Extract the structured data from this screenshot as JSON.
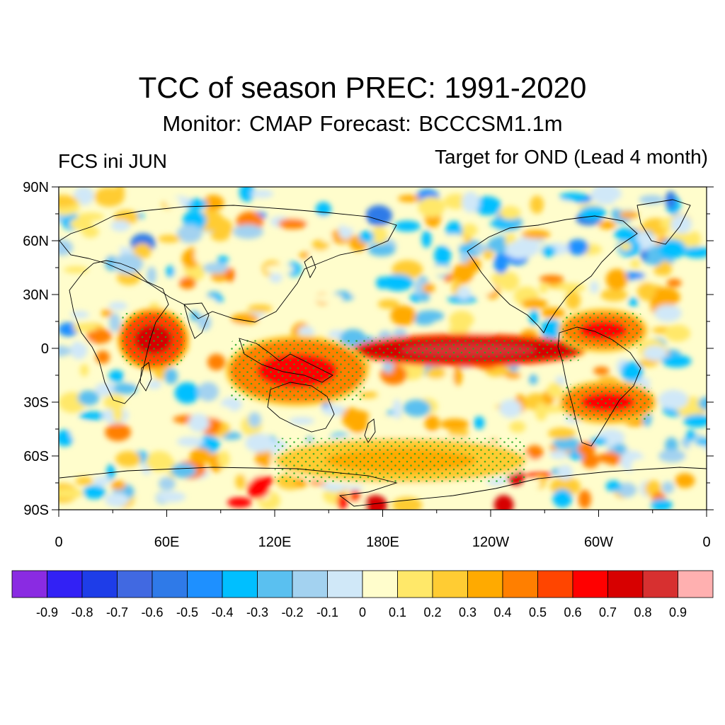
{
  "title": "TCC of season PREC: 1991-2020",
  "subtitle": "Monitor: CMAP   Forecast: BCCCSM1.1m",
  "left_label": "FCS ini JUN",
  "right_label": "Target for OND (Lead 4 month)",
  "map": {
    "lat_ticks": [
      {
        "label": "90N",
        "lat": 90
      },
      {
        "label": "60N",
        "lat": 60
      },
      {
        "label": "30N",
        "lat": 30
      },
      {
        "label": "0",
        "lat": 0
      },
      {
        "label": "30S",
        "lat": -30
      },
      {
        "label": "60S",
        "lat": -60
      },
      {
        "label": "90S",
        "lat": -90
      }
    ],
    "lon_ticks": [
      {
        "label": "0",
        "lon": 0
      },
      {
        "label": "60E",
        "lon": 60
      },
      {
        "label": "120E",
        "lon": 120
      },
      {
        "label": "180E",
        "lon": 180
      },
      {
        "label": "120W",
        "lon": 240
      },
      {
        "label": "60W",
        "lon": 300
      },
      {
        "label": "0",
        "lon": 360
      }
    ],
    "dominant_features": [
      {
        "name": "equatorial central-east Pacific maximum",
        "lon_range": [
          165,
          290
        ],
        "lat_range": [
          -8,
          6
        ],
        "value": 0.9
      },
      {
        "name": "western Indian Ocean / East Africa",
        "lon_range": [
          35,
          70
        ],
        "lat_range": [
          -10,
          20
        ],
        "value": 0.7
      },
      {
        "name": "Maritime Continent / Australia",
        "lon_range": [
          95,
          170
        ],
        "lat_range": [
          -30,
          5
        ],
        "value": 0.6
      },
      {
        "name": "South America / South Atlantic",
        "lon_range": [
          280,
          330
        ],
        "lat_range": [
          -40,
          -20
        ],
        "value": 0.6
      },
      {
        "name": "northern South America / Caribbean",
        "lon_range": [
          280,
          325
        ],
        "lat_range": [
          0,
          20
        ],
        "value": 0.6
      },
      {
        "name": "Southern Ocean south Pacific",
        "lon_range": [
          120,
          260
        ],
        "lat_range": [
          -75,
          -50
        ],
        "value": 0.4
      }
    ],
    "stippling": "green dots mark significant correlation"
  },
  "colorbar": {
    "colors": [
      "#8a2be2",
      "#3221f5",
      "#1e3de8",
      "#4169e1",
      "#2f7ae8",
      "#1e90ff",
      "#00bfff",
      "#5ac0f0",
      "#a3d2f0",
      "#d0e8f8",
      "#fffdcc",
      "#ffe869",
      "#ffcc33",
      "#ffaa00",
      "#ff7f00",
      "#ff4500",
      "#ff0000",
      "#d70000",
      "#d73030",
      "#ffb0b0"
    ],
    "labels": [
      "-0.9",
      "-0.8",
      "-0.7",
      "-0.6",
      "-0.5",
      "-0.4",
      "-0.3",
      "-0.2",
      "-0.1",
      "0",
      "0.1",
      "0.2",
      "0.3",
      "0.4",
      "0.5",
      "0.6",
      "0.7",
      "0.8",
      "0.9"
    ]
  }
}
